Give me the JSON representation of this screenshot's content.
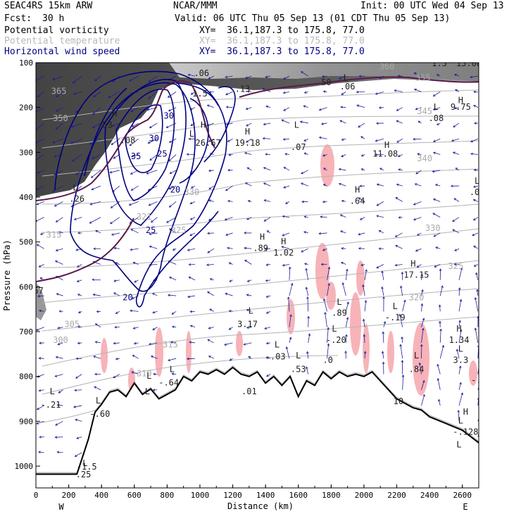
{
  "header": {
    "model": "SEAC4RS 15km ARW",
    "org": "NCAR/MMM",
    "init": "Init: 00 UTC Wed 04 Sep 13",
    "fcst_label": "Fcst:",
    "fcst_value": "30 h",
    "valid": "Valid: 06 UTC Thu 05 Sep 13 (01 CDT Thu 05 Sep 13)"
  },
  "fields": [
    {
      "name": "Potential vorticity",
      "xy": "XY=  36.1,187.3 to 175.8, 77.0",
      "color": "#000000"
    },
    {
      "name": "Potential temperature",
      "xy": "XY=  36.1,187.3 to 175.8, 77.0",
      "color": "#b8b8b8"
    },
    {
      "name": "Horizontal wind speed",
      "xy": "XY=  36.1,187.3 to 175.8, 77.0",
      "color": "#000080"
    }
  ],
  "chart_data": {
    "type": "cross-section",
    "xlabel": "Distance (km)",
    "ylabel": "Pressure (hPa)",
    "xlim": [
      0,
      2700
    ],
    "ylim": [
      1050,
      100
    ],
    "x_ticks": [
      "0",
      "200",
      "400",
      "600",
      "800",
      "1000",
      "1200",
      "1400",
      "1600",
      "1800",
      "2000",
      "2200",
      "2400",
      "2600"
    ],
    "y_ticks": [
      "100",
      "200",
      "300",
      "400",
      "500",
      "600",
      "700",
      "800",
      "900",
      "1000"
    ],
    "endpoints": {
      "left": "W",
      "right": "E"
    },
    "terrain_profile": [
      [
        0,
        1018
      ],
      [
        100,
        1018
      ],
      [
        250,
        1018
      ],
      [
        320,
        940
      ],
      [
        360,
        880
      ],
      [
        400,
        862
      ],
      [
        450,
        835
      ],
      [
        500,
        830
      ],
      [
        550,
        845
      ],
      [
        600,
        815
      ],
      [
        650,
        840
      ],
      [
        700,
        828
      ],
      [
        750,
        850
      ],
      [
        800,
        840
      ],
      [
        850,
        830
      ],
      [
        900,
        800
      ],
      [
        950,
        810
      ],
      [
        1000,
        790
      ],
      [
        1050,
        795
      ],
      [
        1100,
        785
      ],
      [
        1150,
        795
      ],
      [
        1200,
        780
      ],
      [
        1250,
        795
      ],
      [
        1300,
        800
      ],
      [
        1350,
        790
      ],
      [
        1400,
        815
      ],
      [
        1450,
        800
      ],
      [
        1500,
        820
      ],
      [
        1550,
        800
      ],
      [
        1600,
        845
      ],
      [
        1650,
        810
      ],
      [
        1700,
        820
      ],
      [
        1750,
        790
      ],
      [
        1800,
        805
      ],
      [
        1850,
        790
      ],
      [
        1900,
        800
      ],
      [
        1950,
        795
      ],
      [
        2000,
        800
      ],
      [
        2050,
        790
      ],
      [
        2100,
        810
      ],
      [
        2150,
        830
      ],
      [
        2200,
        850
      ],
      [
        2250,
        860
      ],
      [
        2300,
        870
      ],
      [
        2350,
        875
      ],
      [
        2400,
        890
      ],
      [
        2500,
        905
      ],
      [
        2600,
        920
      ],
      [
        2700,
        948
      ]
    ],
    "wind_speed_contours": [
      {
        "label": "20",
        "at": [
          560,
          630
        ]
      },
      {
        "label": "20",
        "at": [
          850,
          390
        ]
      },
      {
        "label": "25",
        "at": [
          700,
          480
        ]
      },
      {
        "label": "25",
        "at": [
          770,
          310
        ]
      },
      {
        "label": "30",
        "at": [
          720,
          275
        ]
      },
      {
        "label": "30",
        "at": [
          810,
          225
        ]
      },
      {
        "label": "35",
        "at": [
          610,
          315
        ]
      }
    ],
    "theta_labels": [
      {
        "label": "365",
        "at": [
          140,
          170
        ]
      },
      {
        "label": "350",
        "at": [
          150,
          230
        ]
      },
      {
        "label": "345",
        "at": [
          2370,
          215
        ]
      },
      {
        "label": "340",
        "at": [
          2370,
          320
        ]
      },
      {
        "label": "330",
        "at": [
          2420,
          475
        ]
      },
      {
        "label": "325",
        "at": [
          2560,
          560
        ]
      },
      {
        "label": "325",
        "at": [
          870,
          480
        ]
      },
      {
        "label": "320",
        "at": [
          2320,
          630
        ]
      },
      {
        "label": "321",
        "at": [
          660,
          450
        ]
      },
      {
        "label": "315",
        "at": [
          110,
          490
        ]
      },
      {
        "label": "315",
        "at": [
          820,
          735
        ]
      },
      {
        "label": "310",
        "at": [
          660,
          800
        ]
      },
      {
        "label": "305",
        "at": [
          220,
          690
        ]
      },
      {
        "label": "300",
        "at": [
          150,
          725
        ]
      },
      {
        "label": "360",
        "at": [
          2140,
          115
        ]
      },
      {
        "label": "355",
        "at": [
          2360,
          140
        ]
      },
      {
        "label": "330",
        "at": [
          950,
          395
        ]
      }
    ],
    "pv_labels": [
      {
        "label": "L",
        "at": [
          240,
          385
        ]
      },
      {
        "label": ".26",
        "at": [
          250,
          410
        ]
      },
      {
        "label": "L",
        "at": [
          950,
          265
        ]
      },
      {
        "label": ".53",
        "at": [
          420,
          245
        ]
      },
      {
        "label": ".08",
        "at": [
          560,
          280
        ]
      },
      {
        "label": "H",
        "at": [
          1290,
          260
        ]
      },
      {
        "label": "19.18",
        "at": [
          1290,
          285
        ]
      },
      {
        "label": "L",
        "at": [
          1590,
          245
        ]
      },
      {
        "label": ".07",
        "at": [
          1600,
          295
        ]
      },
      {
        "label": "H",
        "at": [
          2140,
          290
        ]
      },
      {
        "label": "11.08",
        "at": [
          2130,
          310
        ]
      },
      {
        "label": "H",
        "at": [
          1960,
          390
        ]
      },
      {
        "label": ".64",
        "at": [
          1960,
          415
        ]
      },
      {
        "label": "H",
        "at": [
          1380,
          495
        ]
      },
      {
        "label": ".89",
        "at": [
          1370,
          520
        ]
      },
      {
        "label": "H",
        "at": [
          1510,
          505
        ]
      },
      {
        "label": "1.02",
        "at": [
          1510,
          530
        ]
      },
      {
        "label": "H",
        "at": [
          2300,
          555
        ]
      },
      {
        "label": "17.15",
        "at": [
          2320,
          580
        ]
      },
      {
        "label": "L",
        "at": [
          2690,
          370
        ]
      },
      {
        "label": ".05",
        "at": [
          2690,
          395
        ]
      },
      {
        "label": "L",
        "at": [
          2440,
          205
        ]
      },
      {
        "label": ".08",
        "at": [
          2440,
          230
        ]
      },
      {
        "label": "H",
        "at": [
          2590,
          190
        ]
      },
      {
        "label": "9.75",
        "at": [
          2590,
          205
        ]
      },
      {
        "label": "L",
        "at": [
          1890,
          140
        ]
      },
      {
        "label": ".06",
        "at": [
          1900,
          160
        ]
      },
      {
        "label": "13.08",
        "at": [
          2640,
          108
        ]
      },
      {
        "label": "1.5",
        "at": [
          2460,
          108
        ]
      },
      {
        "label": "L",
        "at": [
          1860,
          100
        ]
      },
      {
        "label": ".13",
        "at": [
          1260,
          165
        ]
      },
      {
        "label": "1.5",
        "at": [
          1000,
          175
        ]
      },
      {
        "label": ".06",
        "at": [
          1010,
          130
        ]
      },
      {
        "label": "H",
        "at": [
          1020,
          245
        ]
      },
      {
        "label": "26.67",
        "at": [
          1050,
          285
        ]
      },
      {
        "label": "H",
        "at": [
          480,
          220
        ]
      },
      {
        "label": "L",
        "at": [
          1310,
          660
        ]
      },
      {
        "label": "3.17",
        "at": [
          1290,
          690
        ]
      },
      {
        "label": "L",
        "at": [
          1850,
          640
        ]
      },
      {
        "label": ".89",
        "at": [
          1850,
          665
        ]
      },
      {
        "label": "L",
        "at": [
          1820,
          700
        ]
      },
      {
        "label": "-.20",
        "at": [
          1830,
          725
        ]
      },
      {
        "label": "L",
        "at": [
          1470,
          735
        ]
      },
      {
        "label": "-.03",
        "at": [
          1460,
          762
        ]
      },
      {
        "label": "L",
        "at": [
          1600,
          760
        ]
      },
      {
        "label": ".53",
        "at": [
          1600,
          790
        ]
      },
      {
        "label": "L",
        "at": [
          2190,
          650
        ]
      },
      {
        "label": "-.19",
        "at": [
          2190,
          675
        ]
      },
      {
        "label": "H",
        "at": [
          2580,
          700
        ]
      },
      {
        "label": "1.34",
        "at": [
          2580,
          725
        ]
      },
      {
        "label": "L",
        "at": [
          2590,
          745
        ]
      },
      {
        "label": "3.3",
        "at": [
          2590,
          770
        ]
      },
      {
        "label": "L",
        "at": [
          2320,
          760
        ]
      },
      {
        "label": ".84",
        "at": [
          2320,
          790
        ]
      },
      {
        "label": "L",
        "at": [
          100,
          840
        ]
      },
      {
        "label": "-.21",
        "at": [
          90,
          870
        ]
      },
      {
        "label": "L",
        "at": [
          830,
          790
        ]
      },
      {
        "label": "-.64",
        "at": [
          810,
          820
        ]
      },
      {
        "label": "L",
        "at": [
          380,
          860
        ]
      },
      {
        "label": "-.60",
        "at": [
          390,
          890
        ]
      },
      {
        "label": "L",
        "at": [
          2590,
          905
        ]
      },
      {
        "label": "-.128",
        "at": [
          2620,
          930
        ]
      },
      {
        "label": "H",
        "at": [
          2620,
          885
        ]
      },
      {
        "label": "L",
        "at": [
          2580,
          958
        ]
      },
      {
        "label": "L",
        "at": [
          300,
          1000
        ]
      },
      {
        "label": "-1.5",
        "at": [
          310,
          1008
        ]
      },
      {
        "label": ".25",
        "at": [
          290,
          1025
        ]
      },
      {
        "label": ".67",
        "at": [
          0,
          615
        ]
      },
      {
        "label": "L",
        "at": [
          690,
          805
        ]
      },
      {
        "label": "10",
        "at": [
          2210,
          862
        ]
      },
      {
        "label": "50",
        "at": [
          1770,
          150
        ]
      },
      {
        "label": ".01",
        "at": [
          1300,
          840
        ]
      },
      {
        "label": ".0",
        "at": [
          1780,
          770
        ]
      },
      {
        "label": "L",
        "at": [
          680,
          840
        ]
      },
      {
        "label": "-.8",
        "at": [
          2700,
          815
        ]
      }
    ]
  }
}
